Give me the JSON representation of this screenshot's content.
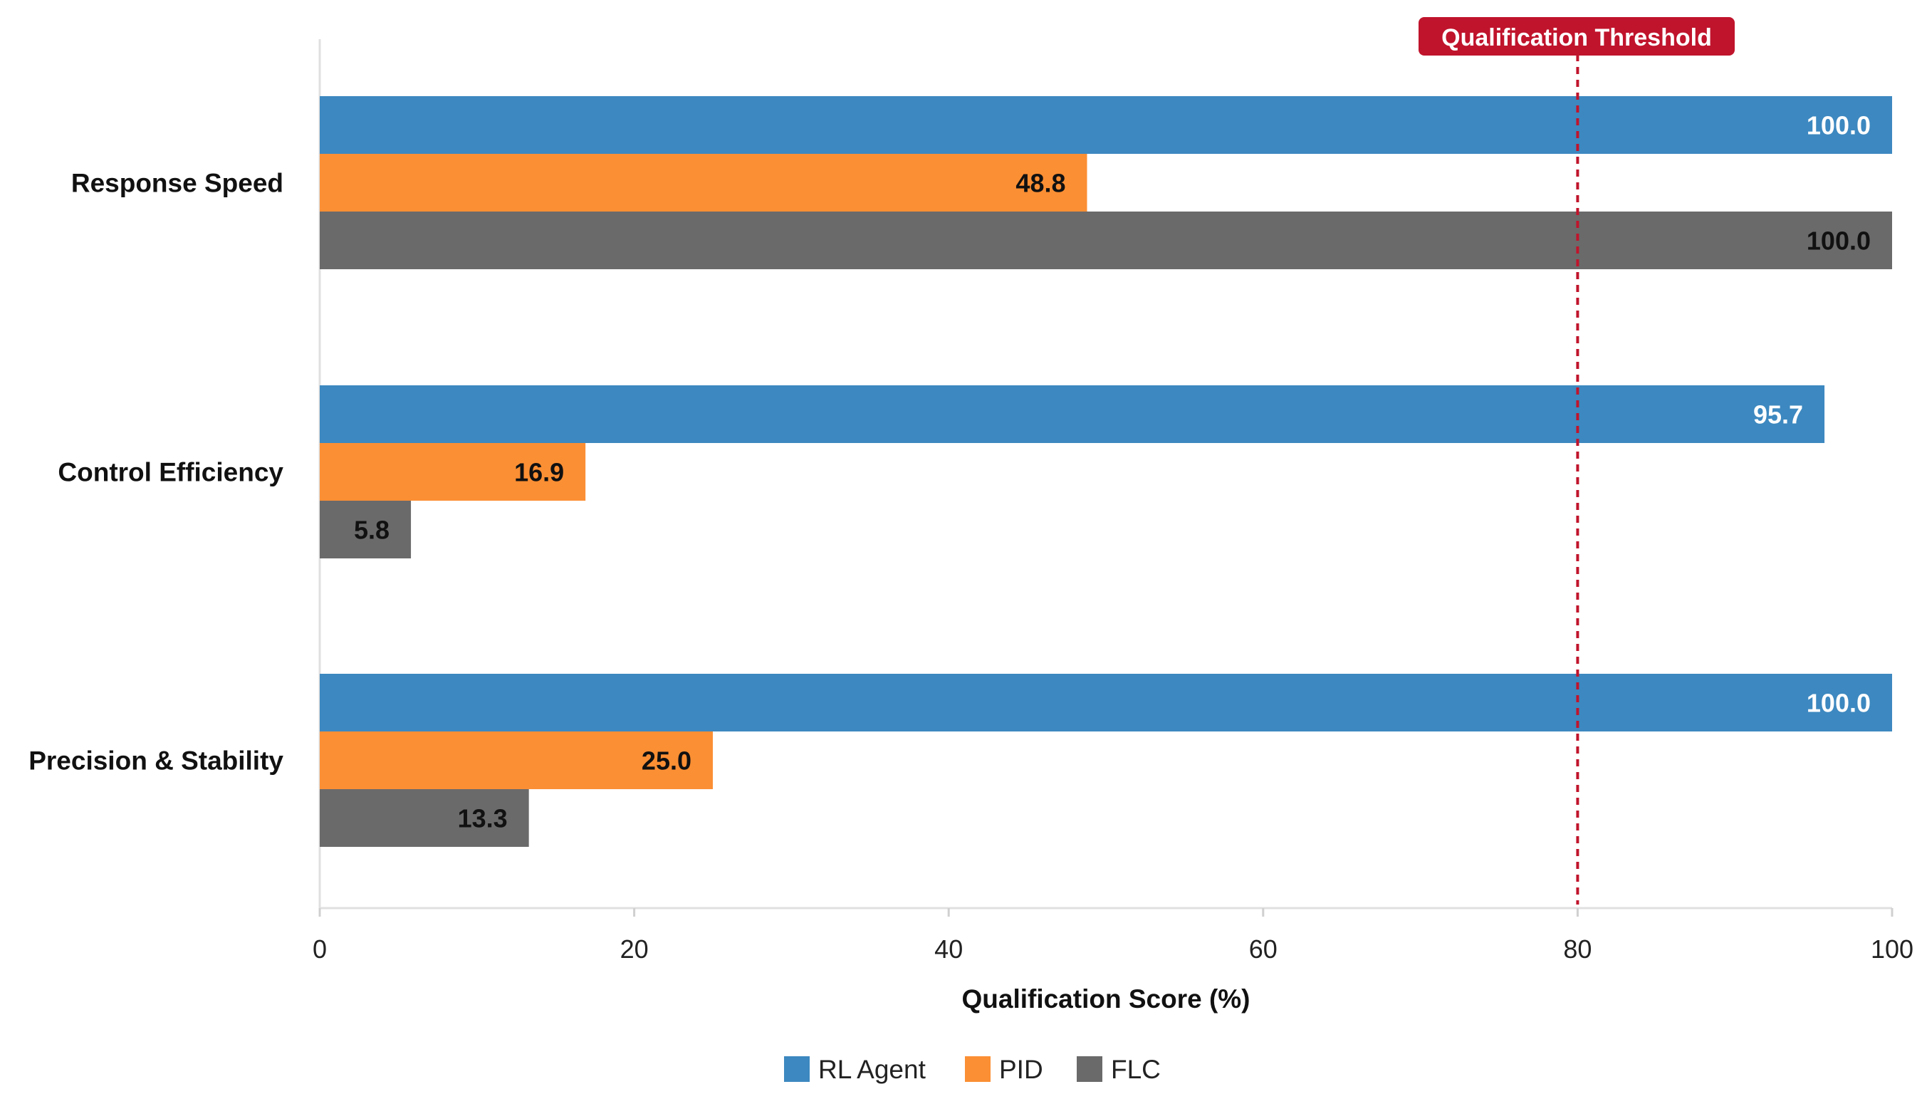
{
  "chart_data": {
    "type": "bar",
    "orientation": "horizontal",
    "categories": [
      "Response Speed",
      "Control Efficiency",
      "Precision & Stability"
    ],
    "series": [
      {
        "name": "RL Agent",
        "color": "#3d88c0",
        "label_color": "#ffffff",
        "values": [
          100.0,
          95.7,
          100.0
        ],
        "labels": [
          "100.0",
          "95.7",
          "100.0"
        ]
      },
      {
        "name": "PID",
        "color": "#fb8f34",
        "label_color": "#111111",
        "values": [
          48.8,
          16.9,
          25.0
        ],
        "labels": [
          "48.8",
          "16.9",
          "25.0"
        ]
      },
      {
        "name": "FLC",
        "color": "#6a6a6a",
        "label_color": "#111111",
        "values": [
          100.0,
          5.8,
          13.3
        ],
        "labels": [
          "100.0",
          "5.8",
          "13.3"
        ]
      }
    ],
    "xlabel": "Qualification Score (%)",
    "ylabel": "",
    "xlim": [
      0,
      100
    ],
    "xticks": [
      0,
      20,
      40,
      60,
      80,
      100
    ],
    "xtick_labels": [
      "0",
      "20",
      "40",
      "60",
      "80",
      "100"
    ],
    "threshold": {
      "value": 80,
      "label": "Qualification Threshold",
      "color": "#c0142c"
    },
    "legend_position": "bottom-center",
    "grid": false
  }
}
